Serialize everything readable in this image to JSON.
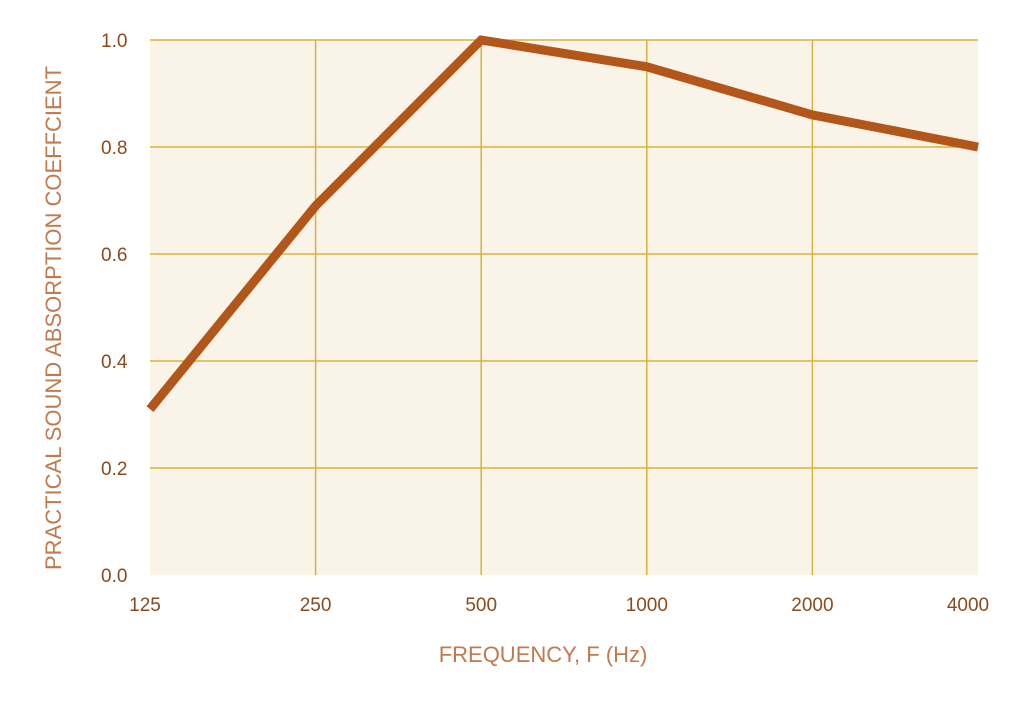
{
  "chart_data": {
    "type": "line",
    "title": "",
    "xlabel": "FREQUENCY, F (Hz)",
    "ylabel": "PRACTICAL SOUND ABSORPTION COEFFCIENT",
    "categories": [
      "125",
      "250",
      "500",
      "1000",
      "2000",
      "4000"
    ],
    "y_ticks": [
      "0.0",
      "0.2",
      "0.4",
      "0.6",
      "0.8",
      "1.0"
    ],
    "ylim": [
      0,
      1.0
    ],
    "grid": true,
    "legend": "none",
    "series": [
      {
        "values": [
          0.31,
          0.69,
          1.0,
          0.95,
          0.86,
          0.8
        ]
      }
    ],
    "colors": {
      "plot_background": "#f9f3e8",
      "grid": "#d9b43a",
      "line": "#b3561a",
      "tick_text": "#8a4b1c",
      "axis_title": "#c07a4e"
    }
  }
}
